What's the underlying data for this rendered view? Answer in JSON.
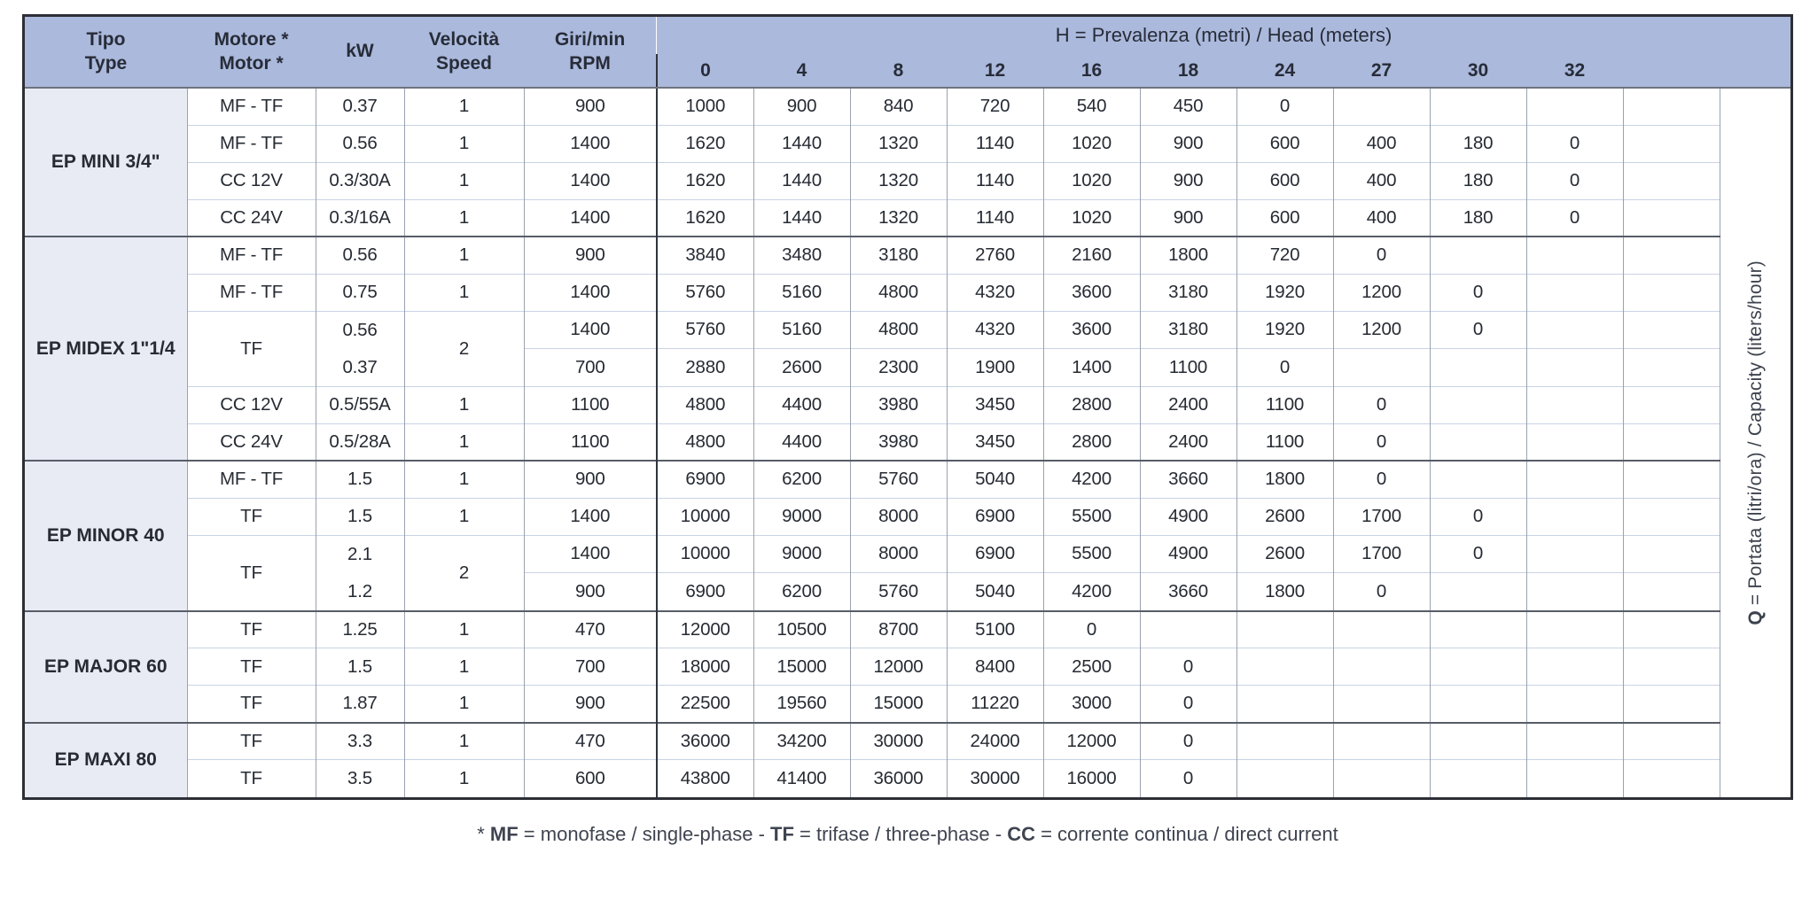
{
  "table": {
    "header": {
      "left_columns": [
        {
          "line1": "Tipo",
          "line2": "Type"
        },
        {
          "line1": "Motore *",
          "line2": "Motor *"
        },
        {
          "line1": "kW",
          "line2": ""
        },
        {
          "line1": "Velocità",
          "line2": "Speed"
        },
        {
          "line1": "Giri/min",
          "line2": "RPM"
        }
      ],
      "h_title_segments": [
        {
          "text": "H",
          "bold": true
        },
        {
          "text": " = Prevalenza (metri) / Head (meters)",
          "bold": false
        }
      ],
      "head_values": [
        "0",
        "4",
        "8",
        "12",
        "16",
        "18",
        "24",
        "27",
        "30",
        "32"
      ]
    },
    "right_label_segments": [
      {
        "text": "Q",
        "bold": true
      },
      {
        "text": " = Portata (litri/ora) / Capacity (liters/hour)",
        "bold": false
      }
    ],
    "groups": [
      {
        "name": "EP MINI 3/4\"",
        "rows": [
          {
            "motor": "MF - TF",
            "kw": "0.37",
            "speed": "1",
            "rpm": "900",
            "values": [
              "1000",
              "900",
              "840",
              "720",
              "540",
              "450",
              "0",
              "",
              "",
              ""
            ]
          },
          {
            "motor": "MF - TF",
            "kw": "0.56",
            "speed": "1",
            "rpm": "1400",
            "values": [
              "1620",
              "1440",
              "1320",
              "1140",
              "1020",
              "900",
              "600",
              "400",
              "180",
              "0"
            ]
          },
          {
            "motor": "CC 12V",
            "kw": "0.3/30A",
            "speed": "1",
            "rpm": "1400",
            "values": [
              "1620",
              "1440",
              "1320",
              "1140",
              "1020",
              "900",
              "600",
              "400",
              "180",
              "0"
            ]
          },
          {
            "motor": "CC 24V",
            "kw": "0.3/16A",
            "speed": "1",
            "rpm": "1400",
            "values": [
              "1620",
              "1440",
              "1320",
              "1140",
              "1020",
              "900",
              "600",
              "400",
              "180",
              "0"
            ]
          }
        ]
      },
      {
        "name": "EP MIDEX 1\"1/4",
        "rows": [
          {
            "motor": "MF - TF",
            "kw": "0.56",
            "speed": "1",
            "rpm": "900",
            "values": [
              "3840",
              "3480",
              "3180",
              "2760",
              "2160",
              "1800",
              "720",
              "0",
              "",
              ""
            ]
          },
          {
            "motor": "MF - TF",
            "kw": "0.75",
            "speed": "1",
            "rpm": "1400",
            "values": [
              "5760",
              "5160",
              "4800",
              "4320",
              "3600",
              "3180",
              "1920",
              "1200",
              "0",
              ""
            ]
          },
          {
            "motor": "TF",
            "motor_span": 2,
            "kw": "0.56",
            "kw_second": "0.37",
            "speed": "2",
            "speed_span": 2,
            "rpm": "1400",
            "values": [
              "5760",
              "5160",
              "4800",
              "4320",
              "3600",
              "3180",
              "1920",
              "1200",
              "0",
              ""
            ]
          },
          {
            "cont": true,
            "rpm": "700",
            "values": [
              "2880",
              "2600",
              "2300",
              "1900",
              "1400",
              "1100",
              "0",
              "",
              "",
              ""
            ]
          },
          {
            "motor": "CC 12V",
            "kw": "0.5/55A",
            "speed": "1",
            "rpm": "1100",
            "values": [
              "4800",
              "4400",
              "3980",
              "3450",
              "2800",
              "2400",
              "1100",
              "0",
              "",
              ""
            ]
          },
          {
            "motor": "CC 24V",
            "kw": "0.5/28A",
            "speed": "1",
            "rpm": "1100",
            "values": [
              "4800",
              "4400",
              "3980",
              "3450",
              "2800",
              "2400",
              "1100",
              "0",
              "",
              ""
            ]
          }
        ]
      },
      {
        "name": "EP MINOR 40",
        "rows": [
          {
            "motor": "MF - TF",
            "kw": "1.5",
            "speed": "1",
            "rpm": "900",
            "values": [
              "6900",
              "6200",
              "5760",
              "5040",
              "4200",
              "3660",
              "1800",
              "0",
              "",
              ""
            ]
          },
          {
            "motor": "TF",
            "kw": "1.5",
            "speed": "1",
            "rpm": "1400",
            "values": [
              "10000",
              "9000",
              "8000",
              "6900",
              "5500",
              "4900",
              "2600",
              "1700",
              "0",
              ""
            ]
          },
          {
            "motor": "TF",
            "motor_span": 2,
            "kw": "2.1",
            "kw_second": "1.2",
            "speed": "2",
            "speed_span": 2,
            "rpm": "1400",
            "values": [
              "10000",
              "9000",
              "8000",
              "6900",
              "5500",
              "4900",
              "2600",
              "1700",
              "0",
              ""
            ]
          },
          {
            "cont": true,
            "rpm": "900",
            "values": [
              "6900",
              "6200",
              "5760",
              "5040",
              "4200",
              "3660",
              "1800",
              "0",
              "",
              ""
            ]
          }
        ]
      },
      {
        "name": "EP MAJOR 60",
        "rows": [
          {
            "motor": "TF",
            "kw": "1.25",
            "speed": "1",
            "rpm": "470",
            "values": [
              "12000",
              "10500",
              "8700",
              "5100",
              "0",
              "",
              "",
              "",
              "",
              ""
            ]
          },
          {
            "motor": "TF",
            "kw": "1.5",
            "speed": "1",
            "rpm": "700",
            "values": [
              "18000",
              "15000",
              "12000",
              "8400",
              "2500",
              "0",
              "",
              "",
              "",
              ""
            ]
          },
          {
            "motor": "TF",
            "kw": "1.87",
            "speed": "1",
            "rpm": "900",
            "values": [
              "22500",
              "19560",
              "15000",
              "11220",
              "3000",
              "0",
              "",
              "",
              "",
              ""
            ]
          }
        ]
      },
      {
        "name": "EP MAXI 80",
        "rows": [
          {
            "motor": "TF",
            "kw": "3.3",
            "speed": "1",
            "rpm": "470",
            "values": [
              "36000",
              "34200",
              "30000",
              "24000",
              "12000",
              "0",
              "",
              "",
              "",
              ""
            ]
          },
          {
            "motor": "TF",
            "kw": "3.5",
            "speed": "1",
            "rpm": "600",
            "values": [
              "43800",
              "41400",
              "36000",
              "30000",
              "16000",
              "0",
              "",
              "",
              "",
              ""
            ]
          }
        ]
      }
    ],
    "footnote_segments": [
      {
        "text": "* ",
        "bold": false
      },
      {
        "text": "MF",
        "bold": true
      },
      {
        "text": " = monofase / single-phase - ",
        "bold": false
      },
      {
        "text": "TF",
        "bold": true
      },
      {
        "text": " = trifase / three-phase - ",
        "bold": false
      },
      {
        "text": "CC",
        "bold": true
      },
      {
        "text": " = corrente continua / direct current",
        "bold": false
      }
    ],
    "colors": {
      "header_bg": "#abb9dc",
      "type_column_bg": "#e8eaf4",
      "outer_border": "#2c2f35",
      "group_separator": "#575d67",
      "thin_row_line": "#c9d3e4",
      "column_line": "#9aa2ae",
      "text": "#262b33"
    }
  }
}
